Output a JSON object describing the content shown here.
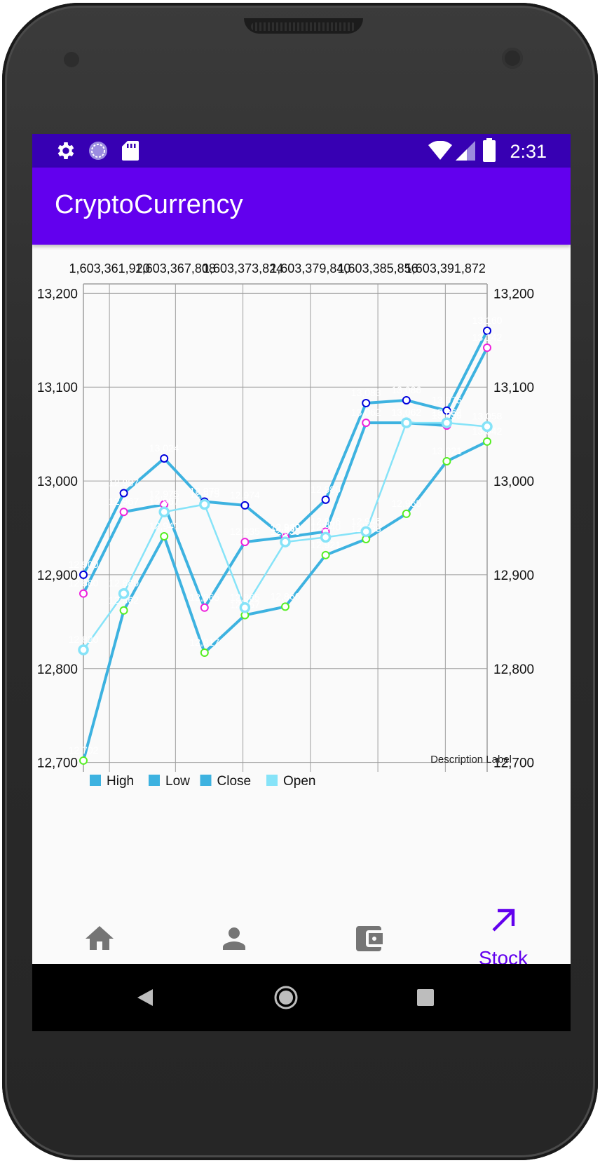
{
  "status_bar": {
    "time": "2:31",
    "left_icons": [
      "settings-icon",
      "sync-icon",
      "sd-card-icon"
    ],
    "right_icons": [
      "wifi-icon",
      "signal-icon",
      "battery-icon"
    ]
  },
  "app_bar": {
    "title": "CryptoCurrency"
  },
  "chart": {
    "description_label": "Description Label",
    "legend": [
      "High",
      "Low",
      "Close",
      "Open"
    ],
    "top_tick_labels": [
      "1,603,361,920",
      "1,603,367,808",
      "1,603,373,824",
      "1,603,379,840",
      "1,603,385,856",
      "1,603,391,872"
    ],
    "left_tick_labels": [
      "13,200",
      "13,100",
      "13,000",
      "12,900",
      "12,800",
      "12,700"
    ],
    "right_tick_labels": [
      "13,200",
      "13,100",
      "13,000",
      "12,900",
      "12,800",
      "12,700"
    ]
  },
  "chart_data": {
    "type": "line",
    "xlabel": "",
    "ylabel": "",
    "ylim": [
      12690,
      13210
    ],
    "x_ticks": [
      1603361920,
      1603367808,
      1603373824,
      1603379840,
      1603385856,
      1603391872
    ],
    "grid": true,
    "legend_position": "bottom-left",
    "colors": {
      "series": "#3db2e0",
      "open": "#86e3f8",
      "high_marker": "#0000dd",
      "low_marker": "#55ee22",
      "close_marker": "#ee22dd"
    },
    "x": [
      1603359600,
      1603363200,
      1603366800,
      1603370400,
      1603374000,
      1603377600,
      1603381200,
      1603384800,
      1603388400,
      1603392000,
      1603395600
    ],
    "series": [
      {
        "name": "High",
        "values": [
          12900,
          12987,
          13024,
          12978,
          12974,
          12939,
          12980,
          13083,
          13086,
          13075,
          13160
        ]
      },
      {
        "name": "Low",
        "values": [
          12702,
          12862,
          12941,
          12817,
          12857,
          12866,
          12921,
          12938,
          12965,
          13021,
          13042
        ]
      },
      {
        "name": "Close",
        "values": [
          12880,
          12967,
          12975,
          12865,
          12935,
          12940,
          12946,
          13062,
          13062,
          13059,
          13142
        ]
      },
      {
        "name": "Open",
        "values": [
          12820,
          12880,
          12967,
          12975,
          12865,
          12935,
          12940,
          12946,
          13062,
          13062,
          13058
        ]
      }
    ]
  },
  "bottom_nav": {
    "items": [
      {
        "icon": "home-icon",
        "label": ""
      },
      {
        "icon": "person-icon",
        "label": ""
      },
      {
        "icon": "wallet-icon",
        "label": ""
      },
      {
        "icon": "trending-up-icon",
        "label": "Stock",
        "selected": true
      }
    ]
  },
  "system_nav": {
    "icons": [
      "back-icon",
      "home-circle-icon",
      "recents-icon"
    ]
  }
}
